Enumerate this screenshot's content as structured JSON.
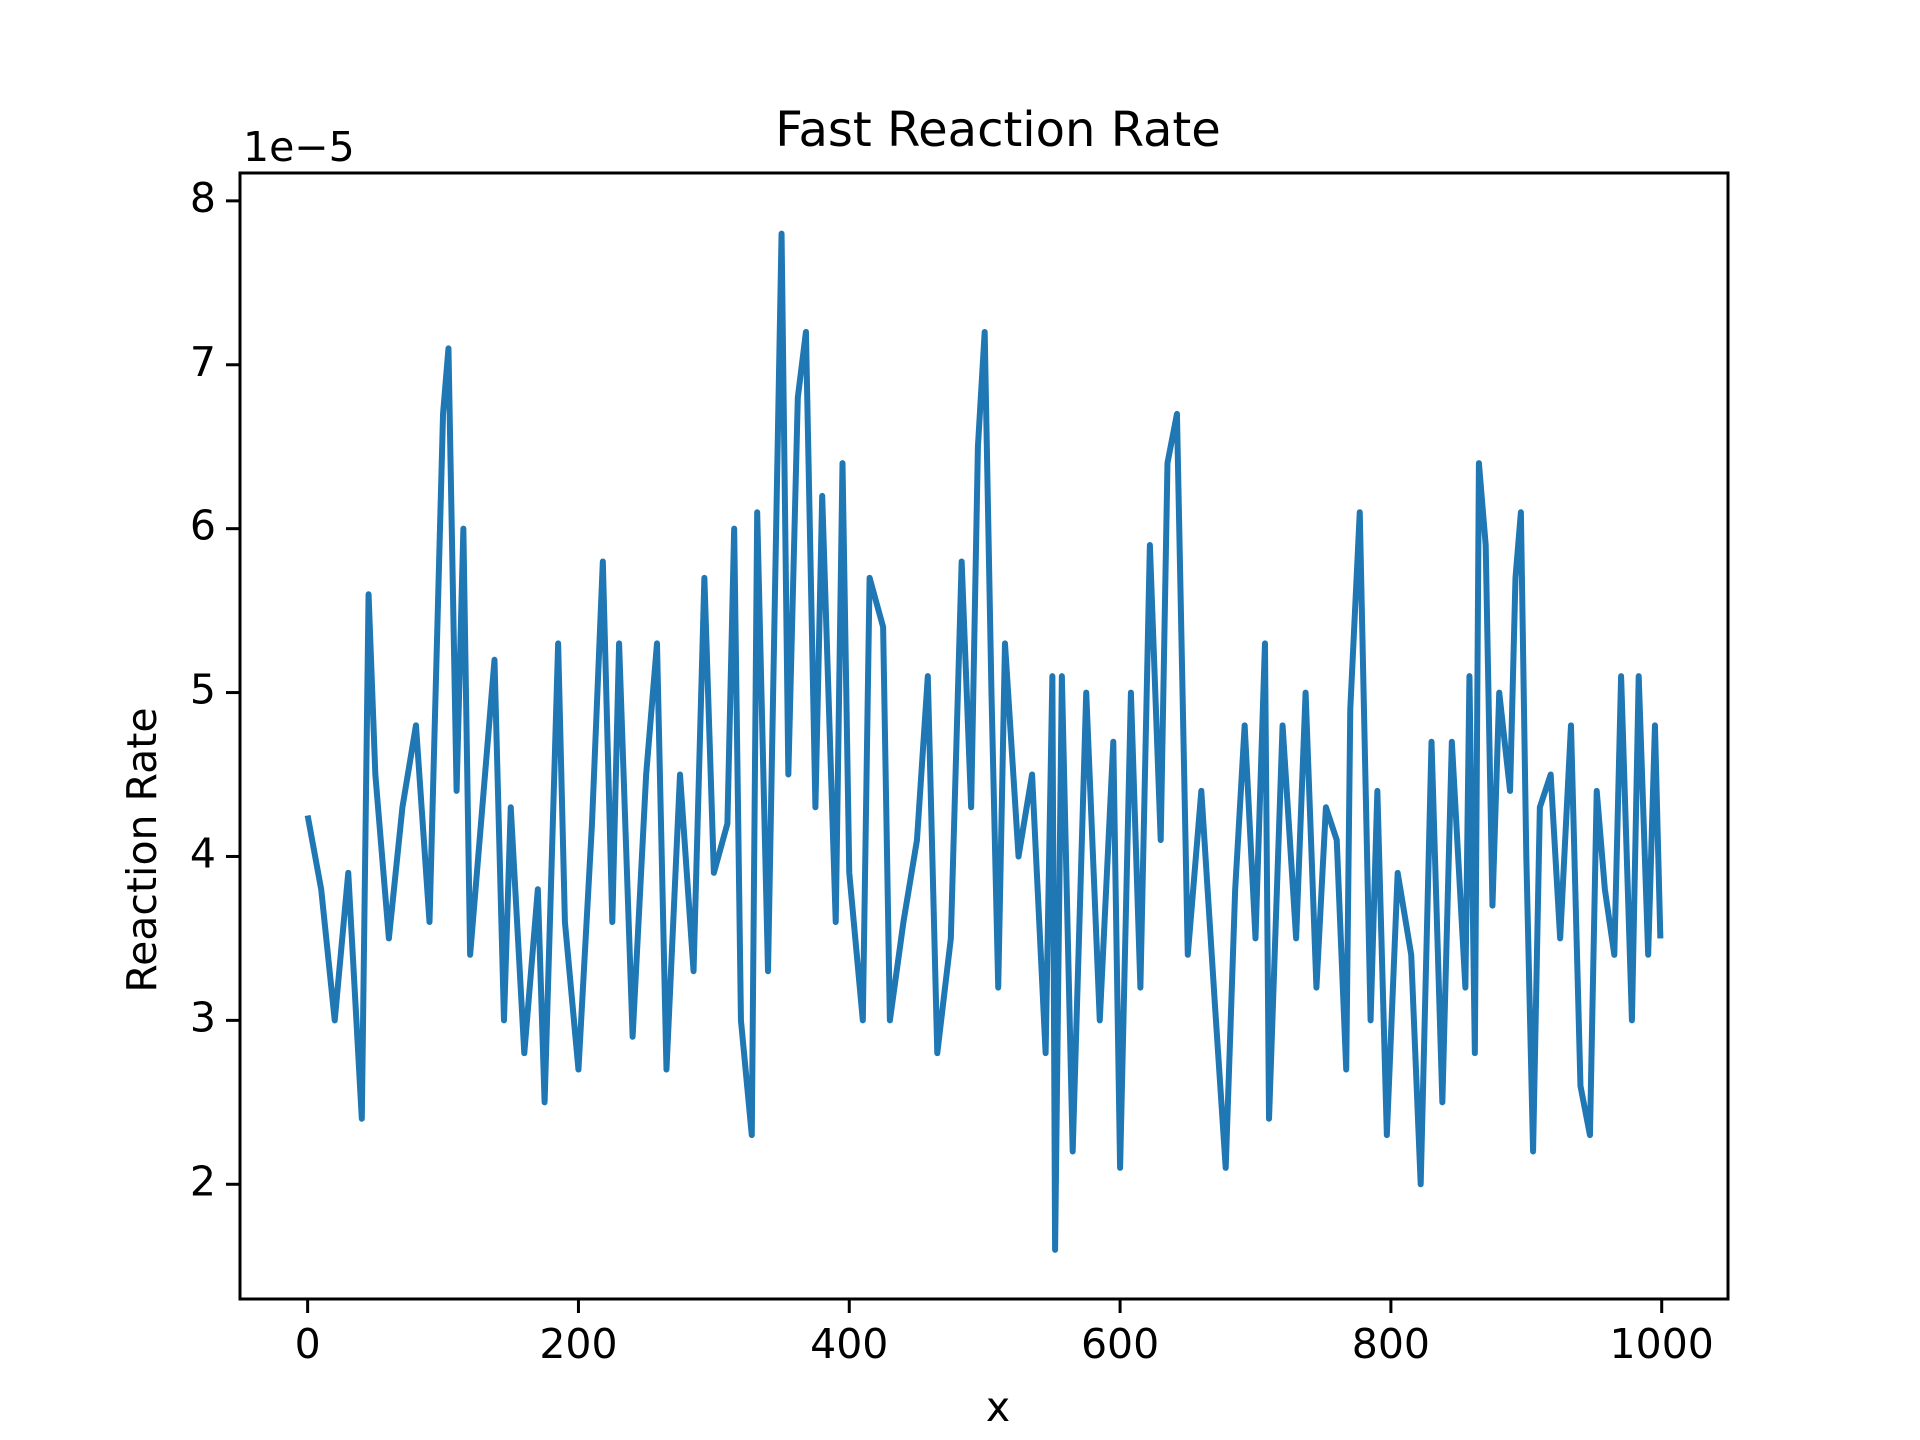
{
  "chart_data": {
    "type": "line",
    "title": "Fast Reaction Rate",
    "xlabel": "x",
    "ylabel": "Reaction Rate",
    "y_offset_label": "1e−5",
    "x": [
      0,
      10,
      20,
      30,
      40,
      45,
      50,
      60,
      70,
      80,
      90,
      100,
      104,
      110,
      115,
      120,
      130,
      138,
      145,
      150,
      160,
      170,
      175,
      185,
      190,
      200,
      210,
      218,
      225,
      230,
      240,
      250,
      258,
      265,
      275,
      285,
      293,
      300,
      310,
      315,
      320,
      328,
      332,
      340,
      350,
      355,
      362,
      368,
      375,
      380,
      390,
      395,
      400,
      410,
      415,
      425,
      430,
      440,
      450,
      458,
      465,
      475,
      483,
      490,
      495,
      500,
      505,
      510,
      515,
      525,
      535,
      545,
      550,
      552,
      557,
      565,
      575,
      585,
      595,
      600,
      608,
      615,
      622,
      630,
      635,
      642,
      650,
      660,
      670,
      678,
      685,
      692,
      700,
      707,
      710,
      720,
      730,
      737,
      745,
      752,
      760,
      767,
      770,
      777,
      785,
      790,
      797,
      805,
      815,
      822,
      830,
      838,
      845,
      855,
      858,
      862,
      865,
      870,
      875,
      880,
      888,
      892,
      896,
      900,
      905,
      910,
      918,
      925,
      933,
      940,
      947,
      952,
      958,
      965,
      970,
      978,
      983,
      990,
      995,
      999
    ],
    "series": [
      {
        "name": "Reaction Rate",
        "color": "#1f77b4",
        "values": [
          4.25,
          3.8,
          3.0,
          3.9,
          2.4,
          5.6,
          4.5,
          3.5,
          4.3,
          4.8,
          3.6,
          6.7,
          7.1,
          4.4,
          6.0,
          3.4,
          4.4,
          5.2,
          3.0,
          4.3,
          2.8,
          3.8,
          2.5,
          5.3,
          3.6,
          2.7,
          4.2,
          5.8,
          3.6,
          5.3,
          2.9,
          4.5,
          5.3,
          2.7,
          4.5,
          3.3,
          5.7,
          3.9,
          4.2,
          6.0,
          3.0,
          2.3,
          6.1,
          3.3,
          7.8,
          4.5,
          6.8,
          7.2,
          4.3,
          6.2,
          3.6,
          6.4,
          3.9,
          3.0,
          5.7,
          5.4,
          3.0,
          3.6,
          4.1,
          5.1,
          2.8,
          3.5,
          5.8,
          4.3,
          6.5,
          7.2,
          5.0,
          3.2,
          5.3,
          4.0,
          4.5,
          2.8,
          5.1,
          1.6,
          5.1,
          2.2,
          5.0,
          3.0,
          4.7,
          2.1,
          5.0,
          3.2,
          5.9,
          4.1,
          6.4,
          6.7,
          3.4,
          4.4,
          3.1,
          2.1,
          3.8,
          4.8,
          3.5,
          5.3,
          2.4,
          4.8,
          3.5,
          5.0,
          3.2,
          4.3,
          4.1,
          2.7,
          4.9,
          6.1,
          3.0,
          4.4,
          2.3,
          3.9,
          3.4,
          2.0,
          4.7,
          2.5,
          4.7,
          3.2,
          5.1,
          2.8,
          6.4,
          5.9,
          3.7,
          5.0,
          4.4,
          5.7,
          6.1,
          4.0,
          2.2,
          4.3,
          4.5,
          3.5,
          4.8,
          2.6,
          2.3,
          4.4,
          3.8,
          3.4,
          5.1,
          3.0,
          5.1,
          3.4,
          4.8,
          3.5
        ]
      }
    ],
    "xlim": [
      -49.95,
      1048.95
    ],
    "ylim": [
      1.3,
      8.17
    ],
    "xticks": [
      0,
      200,
      400,
      600,
      800,
      1000
    ],
    "yticks": [
      2,
      3,
      4,
      5,
      6,
      7,
      8
    ],
    "grid": false
  }
}
